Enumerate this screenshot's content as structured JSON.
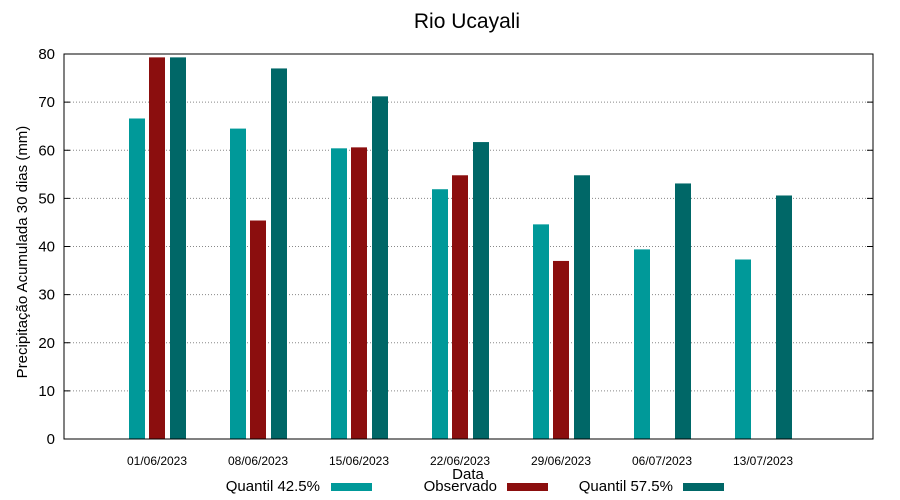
{
  "chart_data": {
    "type": "bar",
    "title": "Rio Ucayali",
    "xlabel": "Data",
    "ylabel": "Precipitação Acumulada 30 dias (mm)",
    "ylim": [
      0,
      80
    ],
    "yticks": [
      0,
      10,
      20,
      30,
      40,
      50,
      60,
      70,
      80
    ],
    "grid": true,
    "categories": [
      "01/06/2023",
      "08/06/2023",
      "15/06/2023",
      "22/06/2023",
      "29/06/2023",
      "06/07/2023",
      "13/07/2023"
    ],
    "series": [
      {
        "name": "Quantil 42.5%",
        "color": "#009999",
        "values": [
          66.6,
          64.5,
          60.4,
          51.9,
          44.6,
          39.4,
          37.3
        ]
      },
      {
        "name": "Observado",
        "color": "#8b0e0e",
        "values": [
          79.3,
          45.4,
          60.6,
          54.8,
          37.0,
          null,
          null
        ]
      },
      {
        "name": "Quantil 57.5%",
        "color": "#006767",
        "values": [
          79.3,
          77.0,
          71.2,
          61.7,
          54.8,
          53.1,
          50.6
        ]
      }
    ],
    "legend_position": "bottom"
  }
}
